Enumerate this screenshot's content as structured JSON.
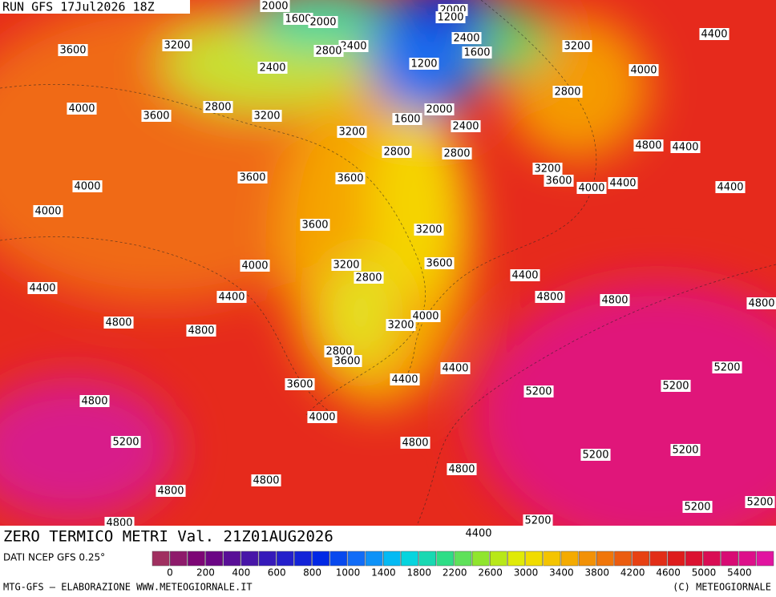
{
  "header": {
    "run": "RUN GFS 17Jul2026 18Z",
    "title": "ZERO TERMICO METRI Val. 21Z01AUG2026"
  },
  "contour_labels": [
    2000,
    1600,
    2000,
    2000,
    1200,
    2400,
    1600,
    1200,
    2400,
    2800,
    3200,
    3600,
    2400,
    3200,
    4400,
    4000,
    2800,
    4000,
    3600,
    2800,
    3200,
    2000,
    1600,
    2400,
    3200,
    2800,
    2800,
    4800,
    4400,
    3200,
    3600,
    4000,
    4400,
    4000,
    3600,
    3600,
    4400,
    4000,
    3600,
    3200,
    4000,
    3200,
    3600,
    2800,
    4400,
    4400,
    4400,
    4800,
    4800,
    4800,
    4000,
    3200,
    4800,
    4800,
    2800,
    3600,
    5200,
    4400,
    4400,
    5200,
    3600,
    5200,
    4800,
    4000,
    5200,
    4800,
    5200,
    5200,
    4800,
    4800,
    4800,
    5200,
    5200,
    5200,
    4800,
    4400
  ],
  "colorbar": {
    "labels": [
      0,
      200,
      400,
      600,
      800,
      1000,
      1400,
      1800,
      2200,
      2600,
      3000,
      3400,
      3800,
      4200,
      4600,
      5000,
      5400
    ]
  },
  "footer": {
    "source": "DATI NCEP GFS 0.25°",
    "credit": "MTG-GFS — ELABORAZIONE WWW.METEOGIORNALE.IT",
    "copyright": "(C) METEOGIORNALE"
  }
}
